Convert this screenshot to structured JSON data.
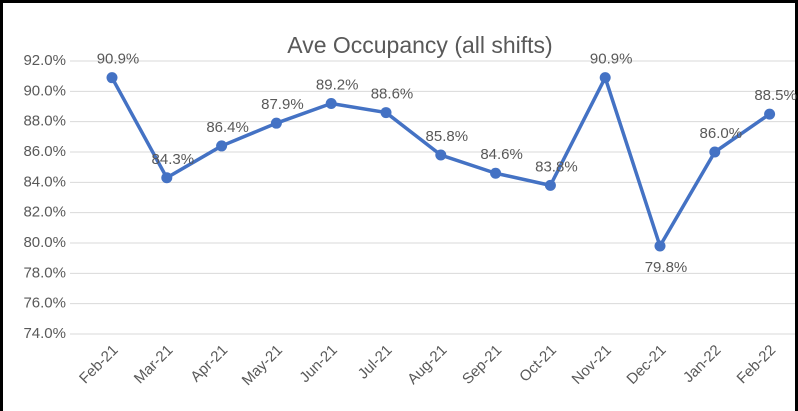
{
  "chart_data": {
    "type": "line",
    "title": "Ave Occupancy (all shifts)",
    "categories": [
      "Feb-21",
      "Mar-21",
      "Apr-21",
      "May-21",
      "Jun-21",
      "Jul-21",
      "Aug-21",
      "Sep-21",
      "Oct-21",
      "Nov-21",
      "Dec-21",
      "Jan-22",
      "Feb-22"
    ],
    "series": [
      {
        "name": "Ave Occupancy",
        "color": "#4472c4",
        "values": [
          90.9,
          84.3,
          86.4,
          87.9,
          89.2,
          88.6,
          85.8,
          84.6,
          83.8,
          90.9,
          79.8,
          86.0,
          88.5
        ],
        "value_labels": [
          "90.9%",
          "84.3%",
          "86.4%",
          "87.9%",
          "89.2%",
          "88.6%",
          "85.8%",
          "84.6%",
          "83.8%",
          "90.9%",
          "79.8%",
          "86.0%",
          "88.5%"
        ]
      }
    ],
    "ylim": [
      74,
      92
    ],
    "yticks": [
      {
        "value": 74,
        "label": "74.0%"
      },
      {
        "value": 76,
        "label": "76.0%"
      },
      {
        "value": 78,
        "label": "78.0%"
      },
      {
        "value": 80,
        "label": "80.0%"
      },
      {
        "value": 82,
        "label": "82.0%"
      },
      {
        "value": 84,
        "label": "84.0%"
      },
      {
        "value": 86,
        "label": "86.0%"
      },
      {
        "value": 88,
        "label": "88.0%"
      },
      {
        "value": 90,
        "label": "90.0%"
      },
      {
        "value": 92,
        "label": "92.0%"
      }
    ],
    "grid": true
  }
}
